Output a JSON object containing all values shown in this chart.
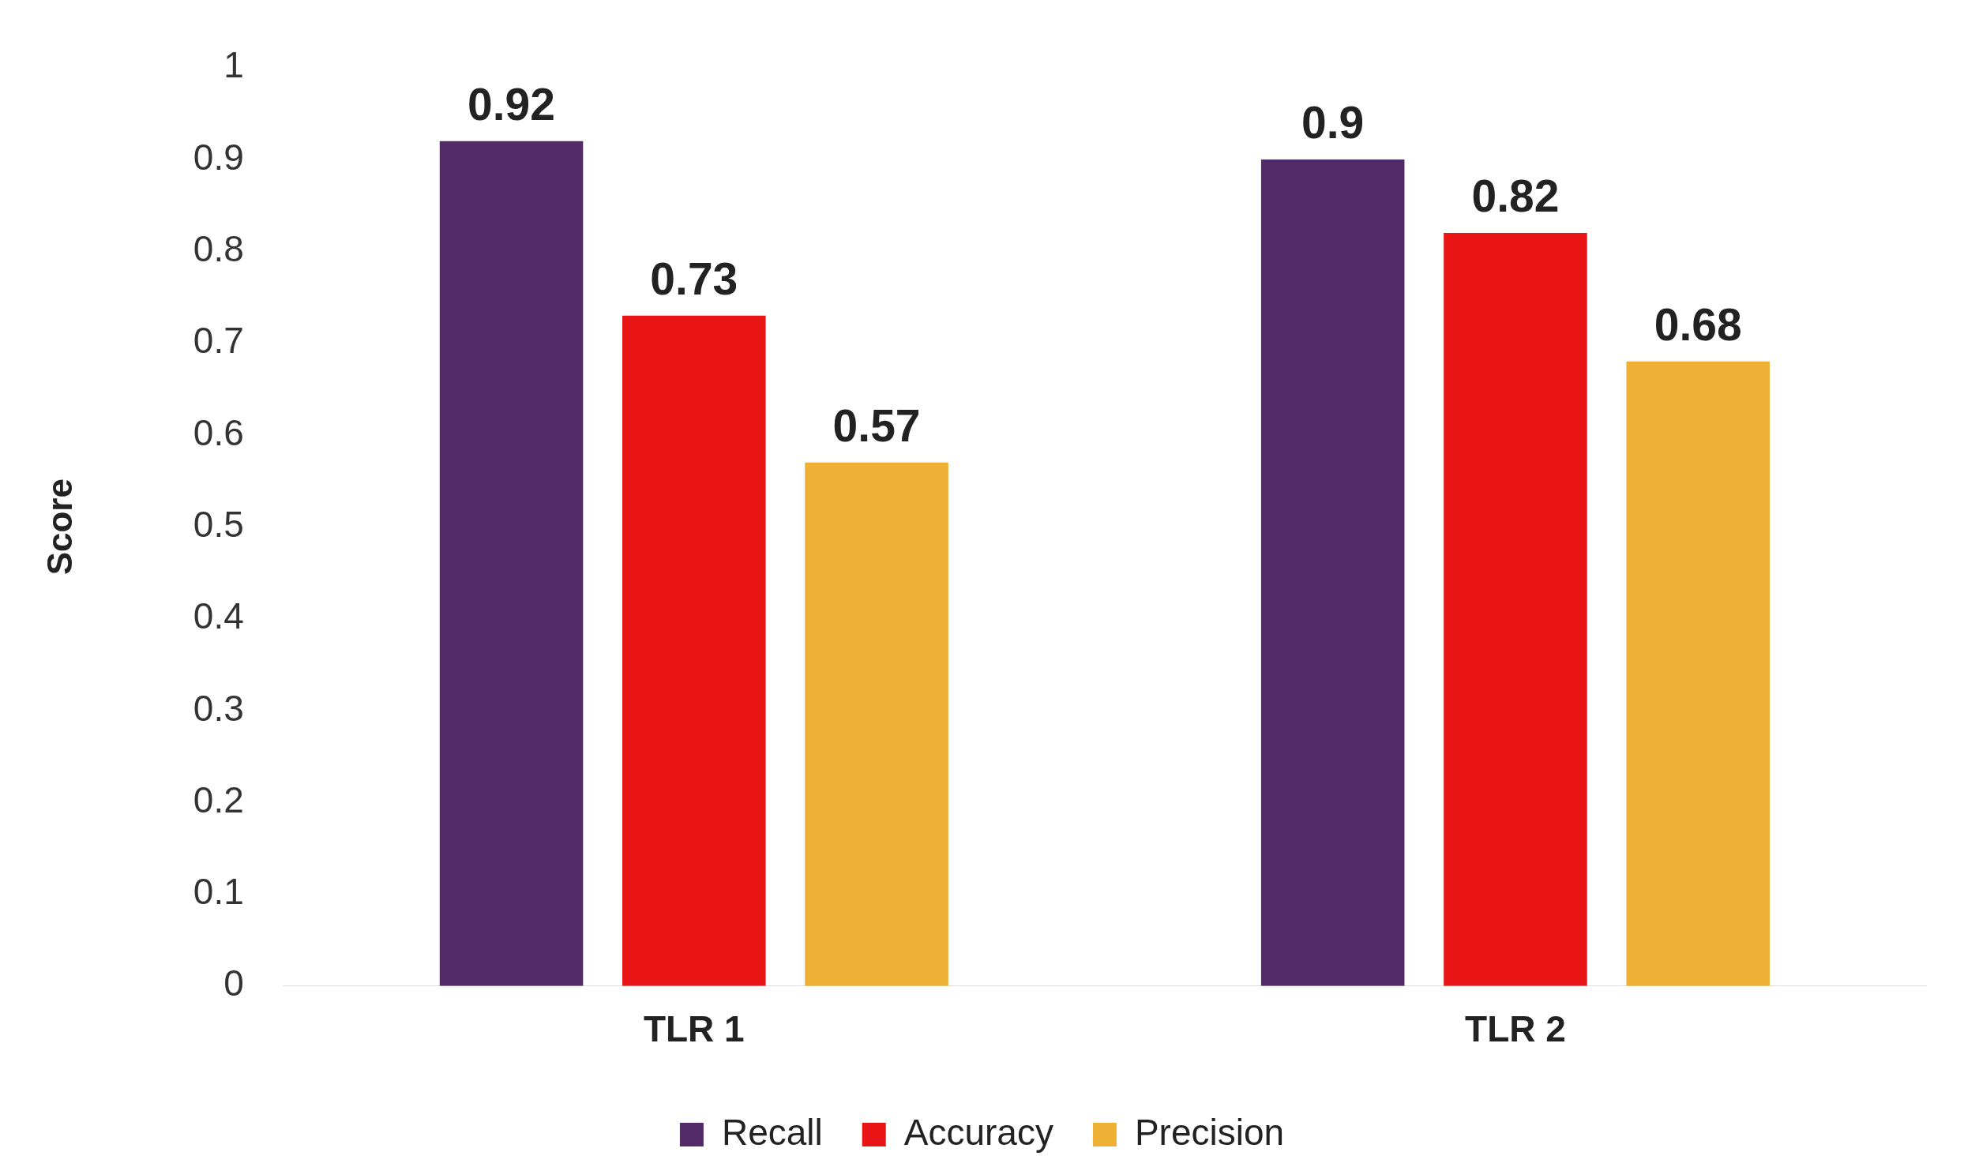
{
  "chart_data": {
    "type": "bar",
    "ylabel": "Score",
    "categories": [
      "TLR 1",
      "TLR 2"
    ],
    "series": [
      {
        "name": "Recall",
        "color": "#522a6a",
        "values": [
          0.92,
          0.9
        ]
      },
      {
        "name": "Accuracy",
        "color": "#e81416",
        "values": [
          0.73,
          0.82
        ]
      },
      {
        "name": "Precision",
        "color": "#eeb035",
        "values": [
          0.57,
          0.68
        ]
      }
    ],
    "ylim": [
      0,
      1
    ],
    "yticks": [
      0,
      0.1,
      0.2,
      0.3,
      0.4,
      0.5,
      0.6,
      0.7,
      0.8,
      0.9,
      1
    ],
    "grid": false,
    "legend": "bottom",
    "data_labels": true
  }
}
